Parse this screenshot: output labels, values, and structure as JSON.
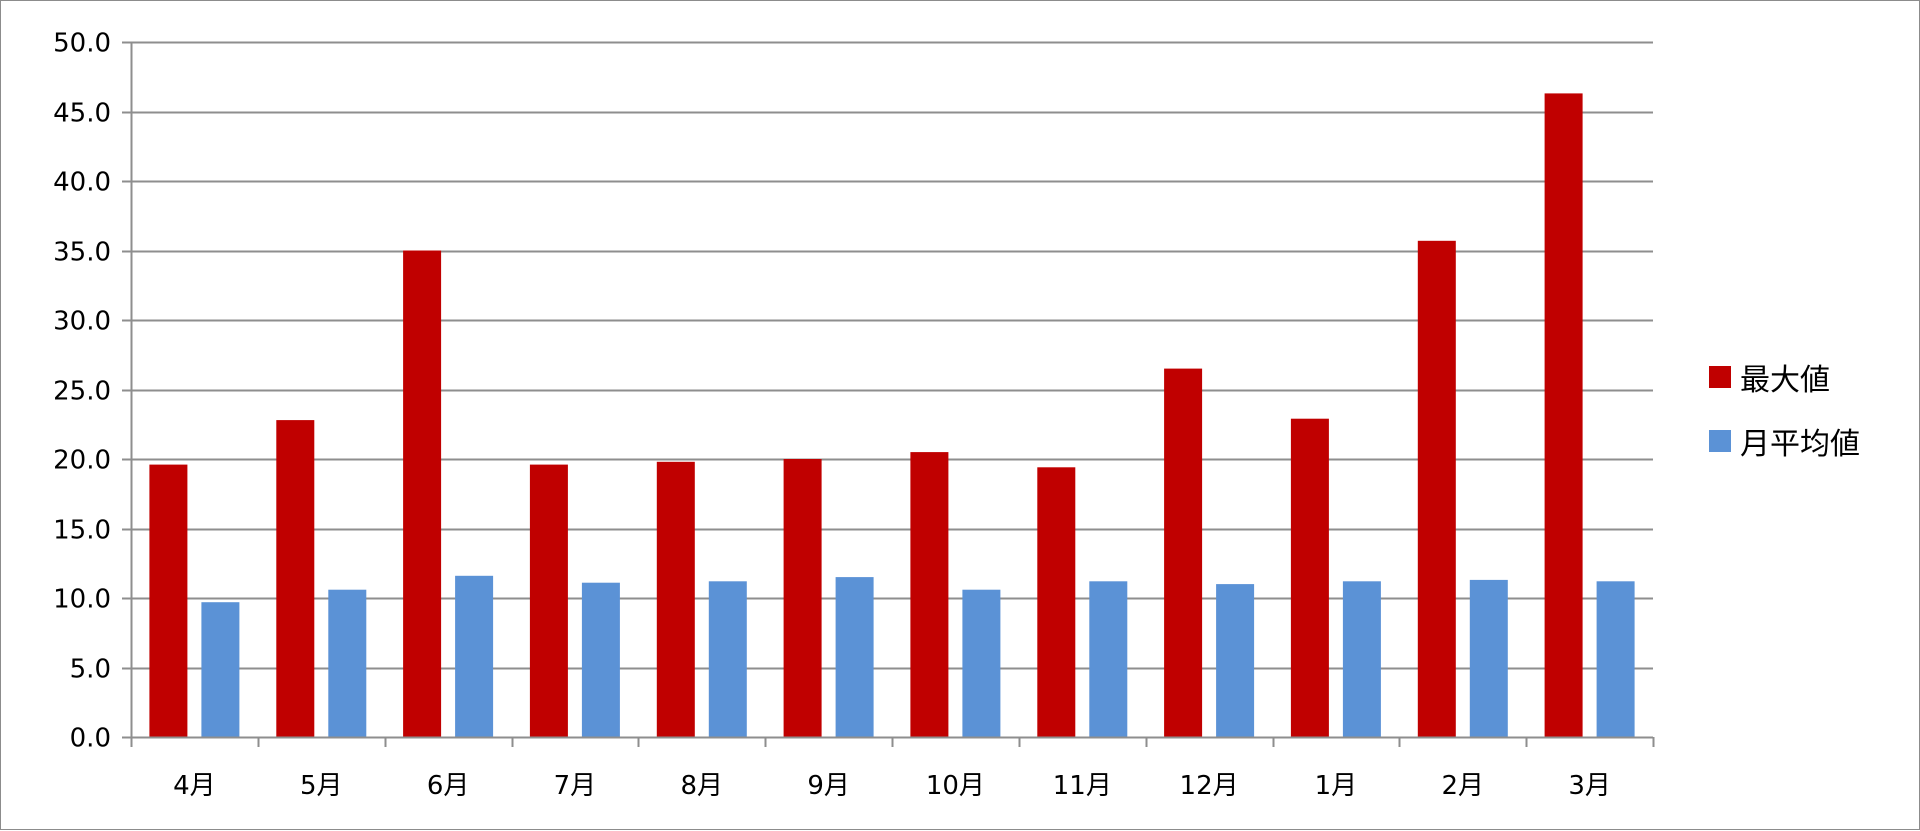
{
  "chart_data": {
    "type": "bar",
    "title": "",
    "xlabel": "",
    "ylabel": "",
    "categories": [
      "4月",
      "5月",
      "6月",
      "7月",
      "8月",
      "9月",
      "10月",
      "11月",
      "12月",
      "1月",
      "2月",
      "3月"
    ],
    "series": [
      {
        "name": "最大値",
        "color": "#c00000",
        "values": [
          19.6,
          22.8,
          35.0,
          19.6,
          19.8,
          20.0,
          20.5,
          19.4,
          26.5,
          22.9,
          35.7,
          46.3
        ]
      },
      {
        "name": "月平均値",
        "color": "#5b92d6",
        "values": [
          9.7,
          10.6,
          11.6,
          11.1,
          11.2,
          11.5,
          10.6,
          11.2,
          11.0,
          11.2,
          11.3,
          11.2
        ]
      }
    ],
    "ylim": [
      0,
      50
    ],
    "yticks": [
      0,
      5,
      10,
      15,
      20,
      25,
      30,
      35,
      40,
      45,
      50
    ],
    "ytick_labels": [
      "0.0",
      "5.0",
      "10.0",
      "15.0",
      "20.0",
      "25.0",
      "30.0",
      "35.0",
      "40.0",
      "45.0",
      "50.0"
    ],
    "grid": true,
    "legend_position": "right"
  }
}
